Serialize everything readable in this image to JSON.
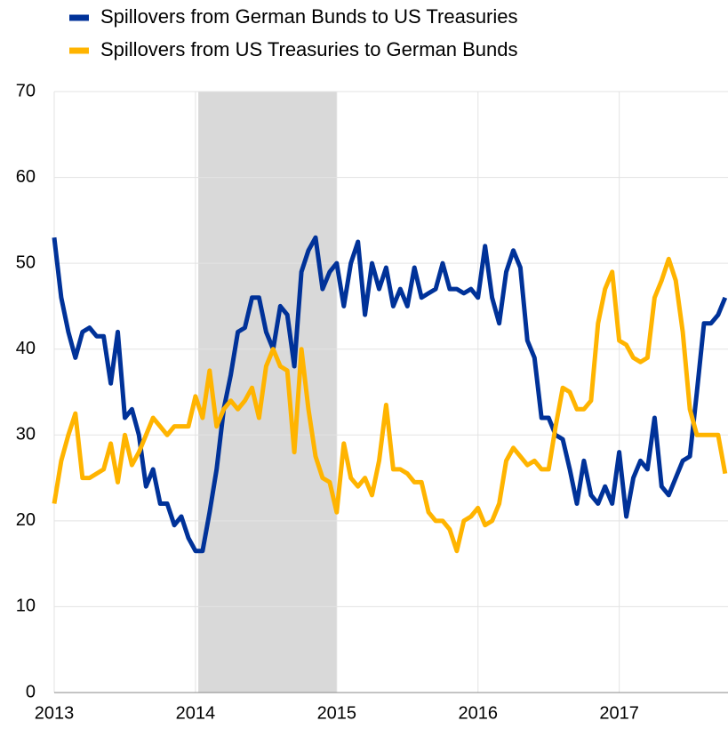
{
  "chart_data": {
    "type": "line",
    "x": [
      2013.0,
      2013.05,
      2013.1,
      2013.15,
      2013.2,
      2013.25,
      2013.3,
      2013.35,
      2013.4,
      2013.45,
      2013.5,
      2013.55,
      2013.6,
      2013.65,
      2013.7,
      2013.75,
      2013.8,
      2013.85,
      2013.9,
      2013.95,
      2014.0,
      2014.05,
      2014.1,
      2014.15,
      2014.2,
      2014.25,
      2014.3,
      2014.35,
      2014.4,
      2014.45,
      2014.5,
      2014.55,
      2014.6,
      2014.65,
      2014.7,
      2014.75,
      2014.8,
      2014.85,
      2014.9,
      2014.95,
      2015.0,
      2015.05,
      2015.1,
      2015.15,
      2015.2,
      2015.25,
      2015.3,
      2015.35,
      2015.4,
      2015.45,
      2015.5,
      2015.55,
      2015.6,
      2015.65,
      2015.7,
      2015.75,
      2015.8,
      2015.85,
      2015.9,
      2015.95,
      2016.0,
      2016.05,
      2016.1,
      2016.15,
      2016.2,
      2016.25,
      2016.3,
      2016.35,
      2016.4,
      2016.45,
      2016.5,
      2016.55,
      2016.6,
      2016.65,
      2016.7,
      2016.75,
      2016.8,
      2016.85,
      2016.9,
      2016.95,
      2017.0,
      2017.05,
      2017.1,
      2017.15,
      2017.2,
      2017.25,
      2017.3,
      2017.35,
      2017.4,
      2017.45,
      2017.5,
      2017.55,
      2017.6,
      2017.65,
      2017.7,
      2017.75
    ],
    "series": [
      {
        "name": "Spillovers from German Bunds to US Treasuries",
        "color": "#003299",
        "values": [
          53,
          46,
          42,
          39,
          42,
          42.5,
          41.5,
          41.5,
          36,
          42,
          32,
          33,
          30,
          24,
          26,
          22,
          22,
          19.5,
          20.5,
          18,
          16.5,
          16.5,
          21,
          26,
          33,
          37,
          42,
          42.5,
          46,
          46,
          42,
          40,
          45,
          44,
          38,
          49,
          51.5,
          53,
          47,
          49,
          50,
          45,
          50,
          52.5,
          44,
          50,
          47,
          49.5,
          45,
          47,
          45,
          49.5,
          46,
          46.5,
          47,
          50,
          47,
          47,
          46.5,
          47,
          46,
          52,
          46,
          43,
          49,
          51.5,
          49.5,
          41,
          39,
          32,
          32,
          30,
          29.5,
          26,
          22,
          27,
          23,
          22,
          24,
          22,
          28,
          20.5,
          25,
          27,
          26,
          32,
          24,
          23,
          25,
          27,
          27.5,
          35,
          43,
          43,
          44,
          46
        ]
      },
      {
        "name": "Spillovers from US Treasuries to German Bunds",
        "color": "#ffb400",
        "values": [
          22,
          27,
          30,
          32.5,
          25,
          25,
          25.5,
          26,
          29,
          24.5,
          30,
          26.5,
          28,
          30,
          32,
          31,
          30,
          31,
          31,
          31,
          34.5,
          32,
          37.5,
          31,
          33,
          34,
          33,
          34,
          35.5,
          32,
          38,
          40,
          38,
          37.5,
          28,
          40,
          33,
          27.5,
          25,
          24.5,
          21,
          29,
          25,
          24,
          25,
          23,
          27,
          33.5,
          26,
          26,
          25.5,
          24.5,
          24.5,
          21,
          20,
          20,
          19,
          16.5,
          20,
          20.5,
          21.5,
          19.5,
          20,
          22,
          27,
          28.5,
          27.5,
          26.5,
          27,
          26,
          26,
          31,
          35.5,
          35,
          33,
          33,
          34,
          43,
          47,
          49,
          41,
          40.5,
          39,
          38.5,
          39,
          46,
          48,
          50.5,
          48,
          42,
          33,
          30,
          30,
          30,
          30,
          25.5
        ]
      }
    ],
    "shaded_range": [
      2014.02,
      2015.0
    ],
    "shaded_color": "#d9d9d9",
    "xlim": [
      2013,
      2017.77
    ],
    "xticks": [
      2013,
      2014,
      2015,
      2016,
      2017
    ],
    "ylim": [
      0,
      70
    ],
    "yticks": [
      0,
      10,
      20,
      30,
      40,
      50,
      60,
      70
    ],
    "grid": true,
    "legend": "top-left"
  }
}
